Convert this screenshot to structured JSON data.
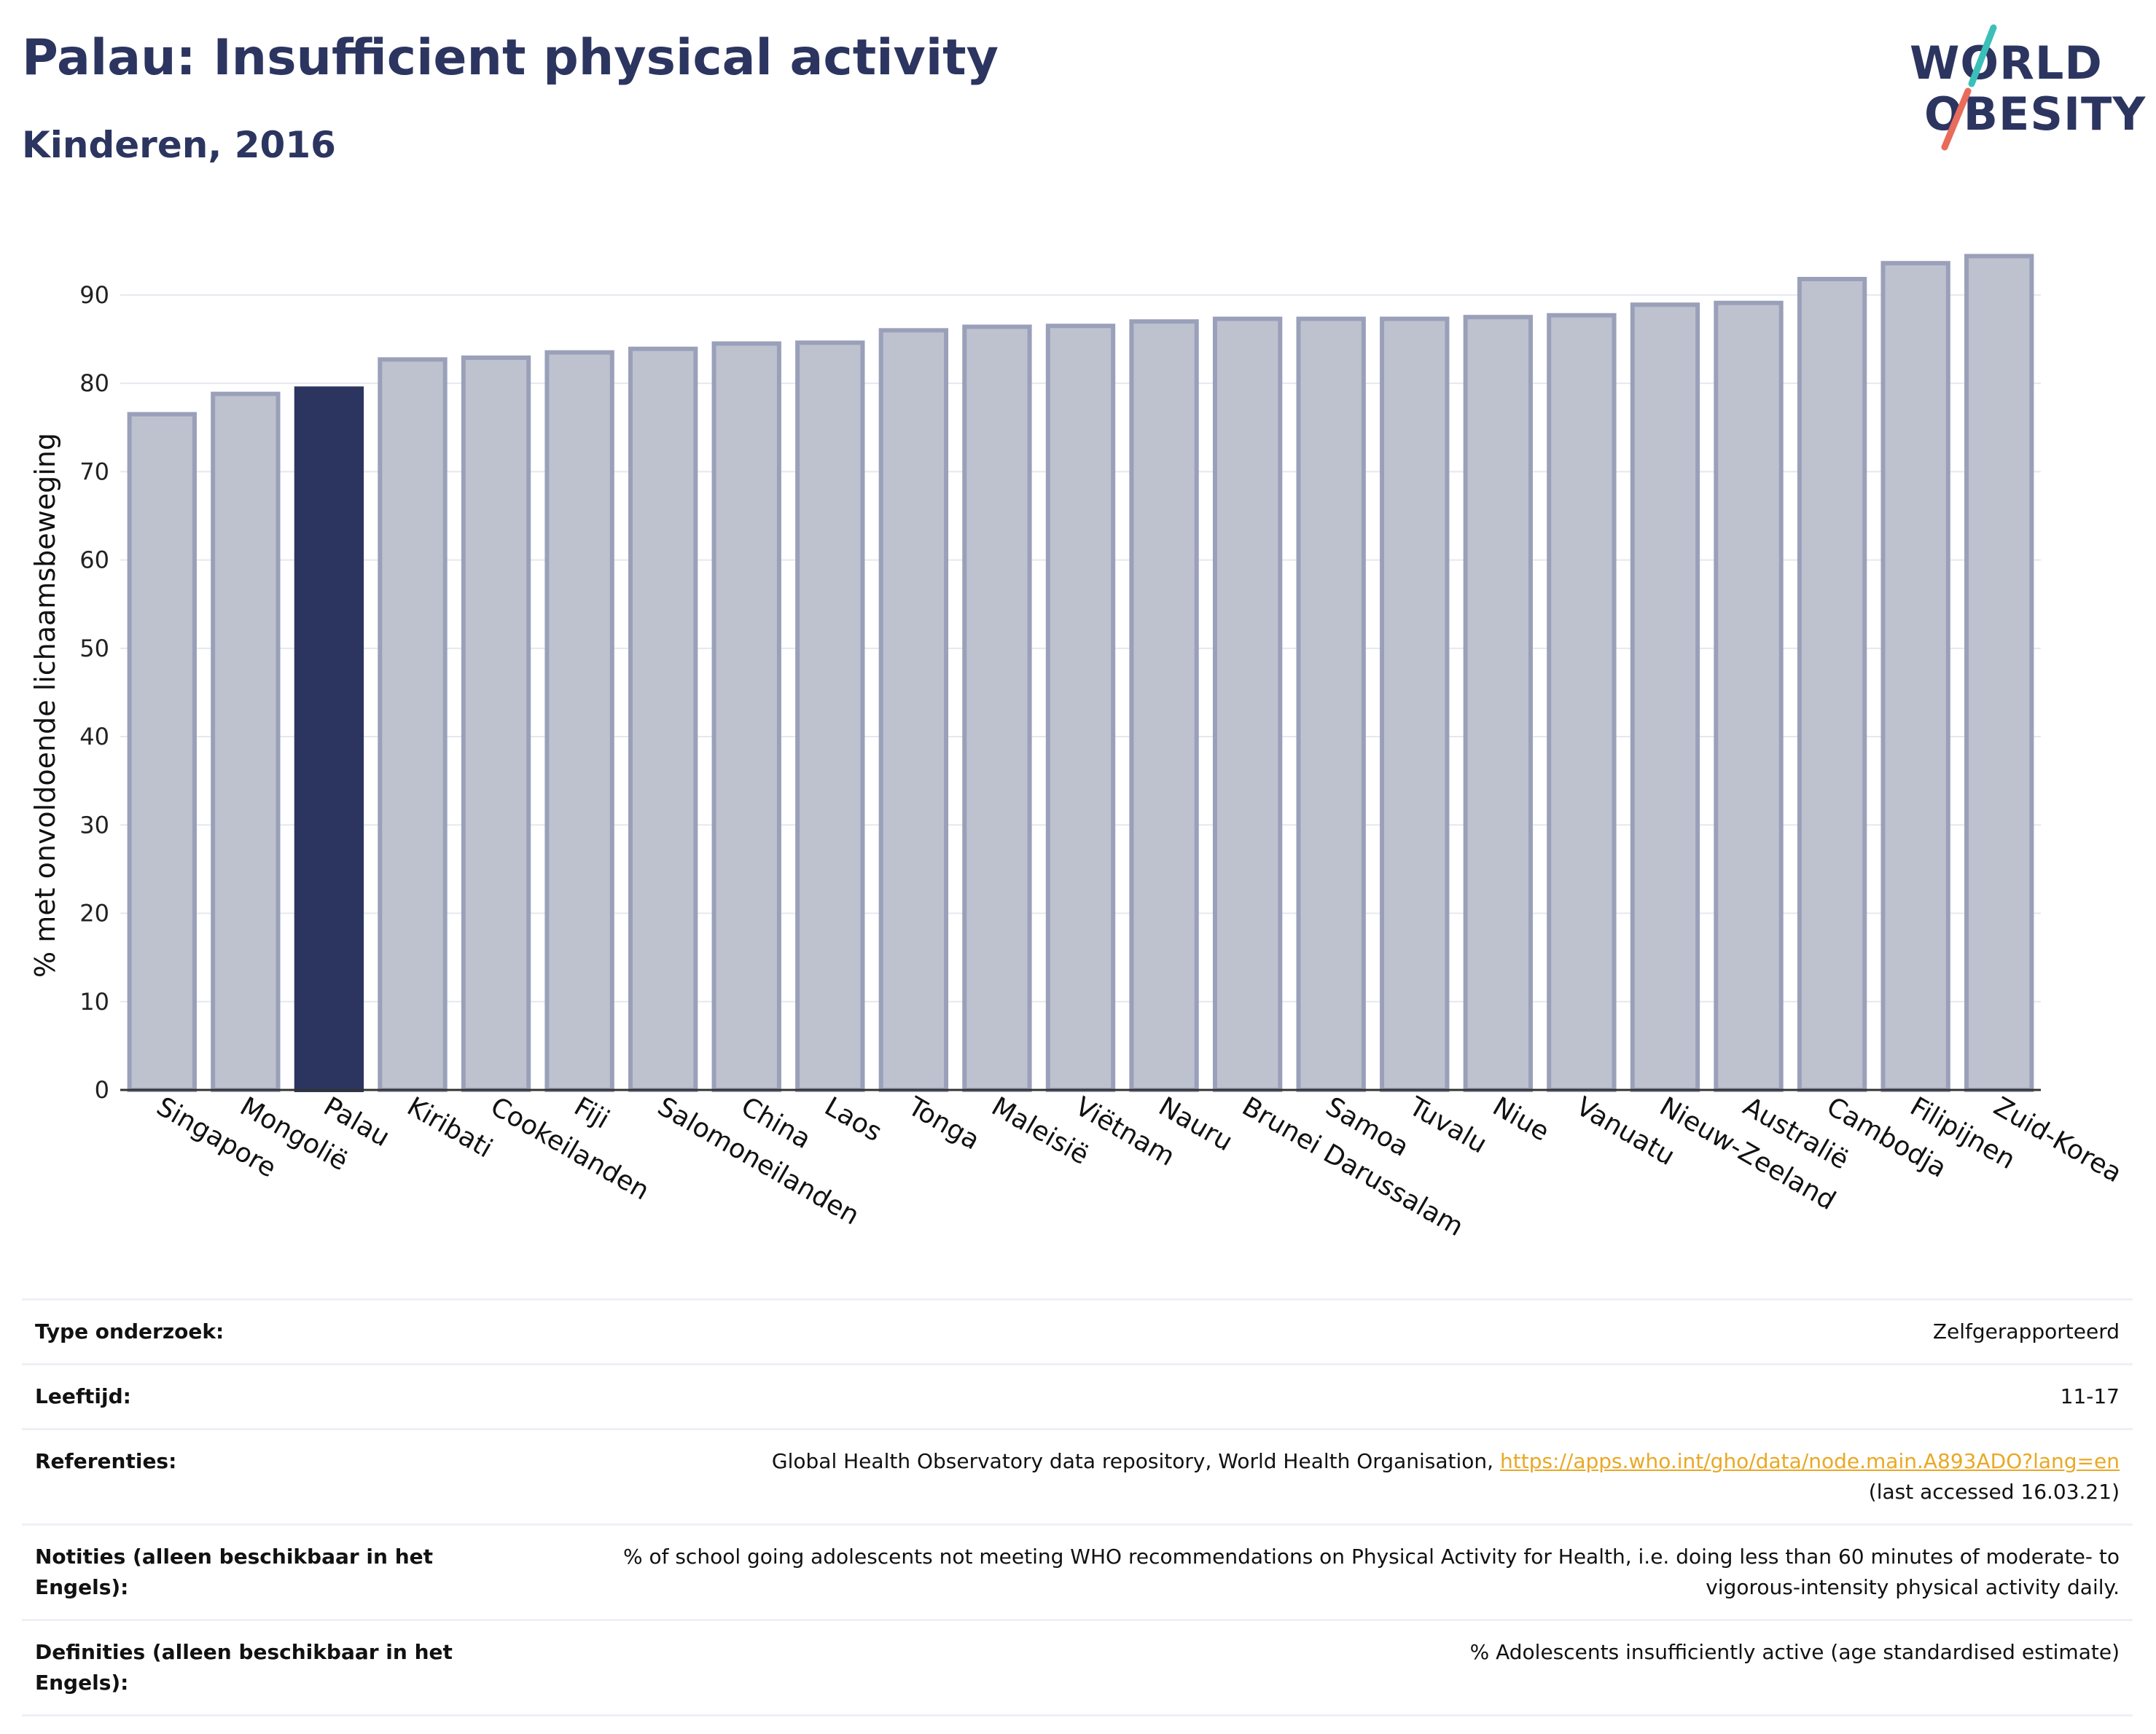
{
  "header": {
    "title": "Palau: Insufficient physical activity",
    "subtitle": "Kinderen, 2016"
  },
  "logo": {
    "line1": "WORLD",
    "line2": "OBESITY",
    "accent1": "#3bbfb9",
    "accent2": "#e86b5c"
  },
  "colors": {
    "bar_default": "#bec2cf",
    "bar_border": "#9aa0b9",
    "bar_highlight": "#2c3560",
    "grid": "#e6e8ef"
  },
  "chart_data": {
    "type": "bar",
    "ylabel": "% met onvoldoende lichaamsbeweging",
    "ylim": [
      0,
      97
    ],
    "yticks": [
      0,
      10,
      20,
      30,
      40,
      50,
      60,
      70,
      80,
      90
    ],
    "grid": true,
    "highlight": "Palau",
    "categories": [
      "Singapore",
      "Mongolië",
      "Palau",
      "Kiribati",
      "Cookeilanden",
      "Fiji",
      "Salomoneilanden",
      "China",
      "Laos",
      "Tonga",
      "Maleisië",
      "Viëtnam",
      "Nauru",
      "Brunei Darussalam",
      "Samoa",
      "Tuvalu",
      "Niue",
      "Vanuatu",
      "Nieuw-Zeeland",
      "Australië",
      "Cambodja",
      "Filipijnen",
      "Zuid-Korea"
    ],
    "values": [
      76.5,
      78.8,
      79.4,
      82.7,
      82.9,
      83.5,
      83.9,
      84.5,
      84.6,
      86.0,
      86.4,
      86.5,
      87.0,
      87.3,
      87.3,
      87.3,
      87.5,
      87.7,
      88.9,
      89.1,
      91.8,
      93.6,
      94.4
    ]
  },
  "info": {
    "type_label": "Type onderzoek:",
    "type_value": "Zelfgerapporteerd",
    "age_label": "Leeftijd:",
    "age_value": "11-17",
    "ref_label": "Referenties:",
    "ref_text": "Global Health Observatory data repository, World Health Organisation,",
    "ref_link": "https://apps.who.int/gho/data/node.main.A893ADO?lang=en",
    "ref_accessed": "(last accessed 16.03.21)",
    "notes_label": "Notities (alleen beschikbaar in het Engels):",
    "notes_value": "% of school going adolescents not meeting WHO recommendations on Physical Activity for Health, i.e. doing less than 60 minutes of moderate- to vigorous-intensity physical activity daily.",
    "def_label": "Definities (alleen beschikbaar in het Engels):",
    "def_value": "% Adolescents insufficiently active (age standardised estimate)"
  }
}
